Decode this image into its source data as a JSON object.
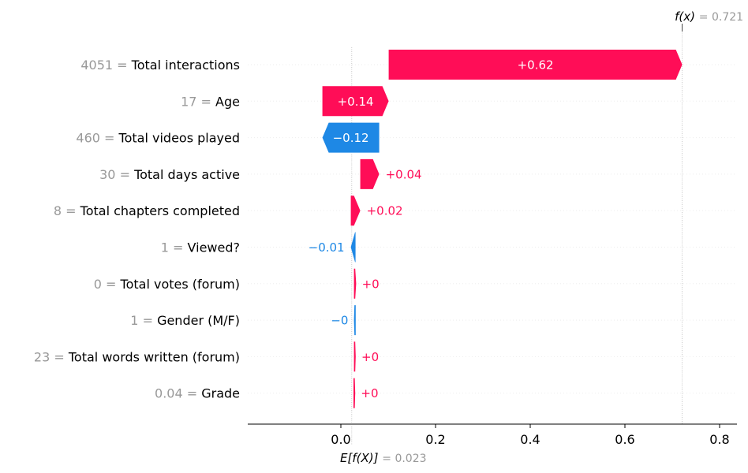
{
  "chart_data": {
    "type": "waterfall",
    "base_value": 0.023,
    "base_label": "E[f(X)]",
    "base_value_text": "= 0.023",
    "output_value": 0.721,
    "output_label": "f(x)",
    "output_value_text": "= 0.721",
    "xlim": [
      -0.19,
      0.85
    ],
    "x_ticks": [
      0.0,
      0.2,
      0.4,
      0.6,
      0.8
    ],
    "x_tick_labels": [
      "0.0",
      "0.2",
      "0.4",
      "0.6",
      "0.8"
    ],
    "positive_color": "#ff0d57",
    "negative_color": "#1e88e5",
    "features": [
      {
        "value": "4051",
        "name": "Total interactions",
        "contribution": 0.62,
        "label": "+0.62"
      },
      {
        "value": "17",
        "name": "Age",
        "contribution": 0.14,
        "label": "+0.14"
      },
      {
        "value": "460",
        "name": "Total videos played",
        "contribution": -0.12,
        "label": "−0.12"
      },
      {
        "value": "30",
        "name": "Total days active",
        "contribution": 0.04,
        "label": "+0.04"
      },
      {
        "value": "8",
        "name": "Total chapters completed",
        "contribution": 0.02,
        "label": "+0.02"
      },
      {
        "value": "1",
        "name": "Viewed?",
        "contribution": -0.01,
        "label": "−0.01"
      },
      {
        "value": "0",
        "name": "Total votes (forum)",
        "contribution": 0.002,
        "label": "+0"
      },
      {
        "value": "1",
        "name": "Gender (M/F)",
        "contribution": -0.001,
        "label": "−0"
      },
      {
        "value": "23",
        "name": "Total words written (forum)",
        "contribution": 0.001,
        "label": "+0"
      },
      {
        "value": "0.04",
        "name": "Grade",
        "contribution": 0.001,
        "label": "+0"
      }
    ]
  }
}
